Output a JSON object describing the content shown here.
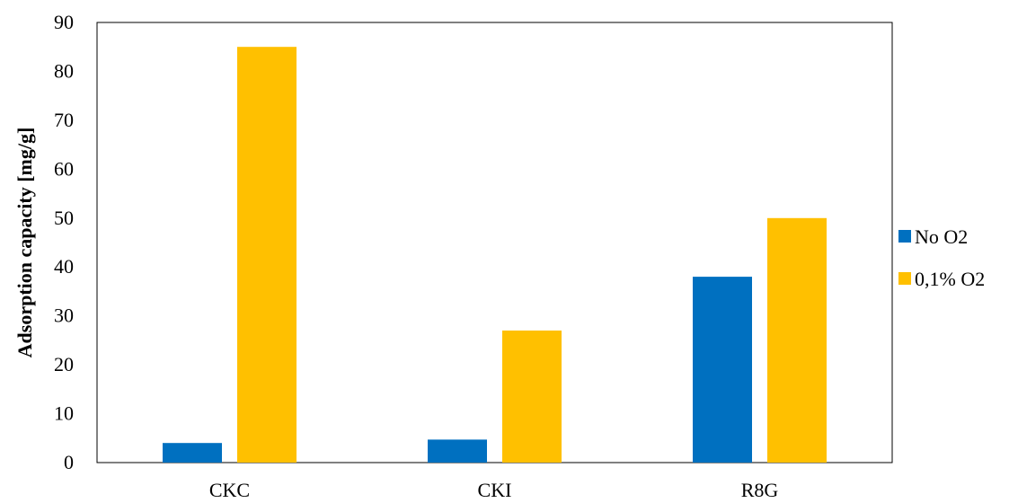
{
  "chart_data": {
    "type": "bar",
    "title": "",
    "xlabel": "",
    "ylabel": "Adsorption capacity [mg/g]",
    "categories": [
      "CKC",
      "CKI",
      "R8G"
    ],
    "series": [
      {
        "name": "No O2",
        "values": [
          4,
          4.7,
          38
        ],
        "color": "#0070C0"
      },
      {
        "name": "0,1% O2",
        "values": [
          85,
          27,
          50
        ],
        "color": "#FFC000"
      }
    ],
    "ylim": [
      0,
      90
    ],
    "yticks": [
      "0",
      "10",
      "20",
      "30",
      "40",
      "50",
      "60",
      "70",
      "80",
      "90"
    ],
    "grid": false,
    "legend_position": "right"
  }
}
